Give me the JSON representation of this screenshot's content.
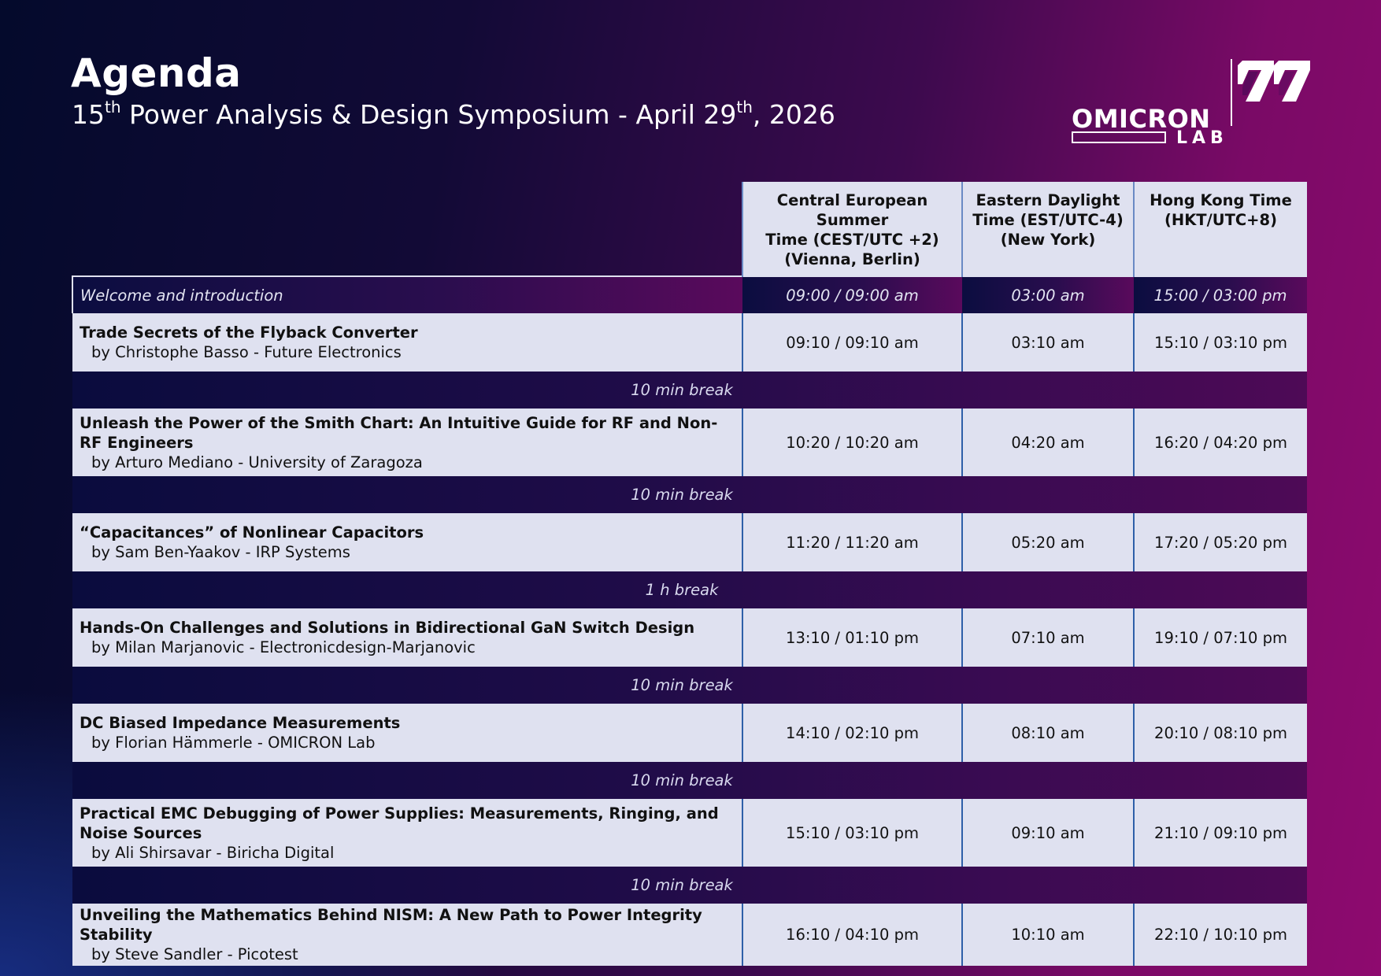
{
  "header": {
    "title": "Agenda",
    "subtitle_pre": "15",
    "subtitle_sup1": "th",
    "subtitle_mid": " Power Analysis & Design Symposium - April 29",
    "subtitle_sup2": "th",
    "subtitle_post": ", 2026"
  },
  "logo": {
    "word": "OMICRON",
    "lab": "LAB"
  },
  "columns": [
    "Central European Summer Time (CEST/UTC +2) (Vienna, Berlin)",
    "Eastern Daylight Time (EST/UTC-4) (New York)",
    "Hong Kong Time (HKT/UTC+8)"
  ],
  "column_lines": [
    [
      "Central European Summer",
      "Time (CEST/UTC +2)",
      "(Vienna, Berlin)"
    ],
    [
      "Eastern Daylight",
      "Time (EST/UTC-4)",
      "(New York)"
    ],
    [
      "Hong Kong Time",
      "(HKT/UTC+8)"
    ]
  ],
  "welcome": {
    "label": "Welcome and introduction",
    "cest": "09:00 / 09:00 am",
    "est": "03:00 am",
    "hkt": "15:00 / 03:00 pm"
  },
  "rows": [
    {
      "kind": "talk",
      "title": "Trade Secrets of the Flyback Converter",
      "speaker": "by Christophe Basso - Future Electronics",
      "cest": "09:10 / 09:10 am",
      "est": "03:10 am",
      "hkt": "15:10 / 03:10 pm"
    },
    {
      "kind": "break",
      "label": "10 min break"
    },
    {
      "kind": "talk",
      "title": "Unleash the Power of the Smith Chart: An Intuitive Guide for RF and Non-RF Engineers",
      "speaker": "by Arturo Mediano - University of Zaragoza",
      "cest": "10:20 / 10:20 am",
      "est": "04:20 am",
      "hkt": "16:20 / 04:20 pm"
    },
    {
      "kind": "break",
      "label": "10 min break"
    },
    {
      "kind": "talk",
      "title": "“Capacitances” of Nonlinear Capacitors",
      "speaker": "by Sam Ben-Yaakov - IRP Systems",
      "cest": "11:20 / 11:20 am",
      "est": "05:20 am",
      "hkt": "17:20 / 05:20 pm"
    },
    {
      "kind": "break",
      "label": "1 h break"
    },
    {
      "kind": "talk",
      "title": "Hands-On Challenges and Solutions in Bidirectional GaN Switch Design",
      "speaker": "by Milan Marjanovic - Electronicdesign-Marjanovic",
      "cest": "13:10 / 01:10 pm",
      "est": "07:10 am",
      "hkt": "19:10 / 07:10 pm"
    },
    {
      "kind": "break",
      "label": "10 min break"
    },
    {
      "kind": "talk",
      "title": "DC Biased Impedance Measurements",
      "speaker": "by Florian Hämmerle - OMICRON Lab",
      "cest": "14:10 / 02:10 pm",
      "est": "08:10 am",
      "hkt": "20:10 / 08:10 pm"
    },
    {
      "kind": "break",
      "label": "10 min break"
    },
    {
      "kind": "talk",
      "title": "Practical EMC Debugging of Power Supplies: Measurements, Ringing, and Noise Sources",
      "speaker": "by Ali Shirsavar - Biricha Digital",
      "cest": "15:10 / 03:10 pm",
      "est": "09:10 am",
      "hkt": "21:10 / 09:10 pm"
    },
    {
      "kind": "break",
      "label": "10 min break"
    },
    {
      "kind": "talk",
      "title": "Unveiling the Mathematics Behind NISM: A New Path to Power Integrity Stability",
      "speaker": "by Steve Sandler - Picotest",
      "cest": "16:10 / 04:10 pm",
      "est": "10:10 am",
      "hkt": "22:10 / 10:10 pm"
    }
  ]
}
